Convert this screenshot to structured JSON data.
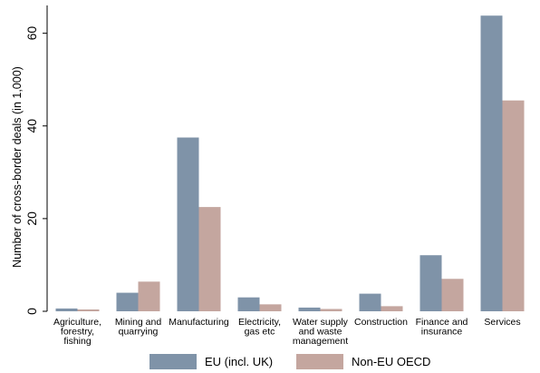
{
  "chart_data": {
    "type": "bar",
    "title": "",
    "xlabel": "",
    "ylabel": "Number of cross-border deals (in 1,000)",
    "ylim": [
      0,
      66
    ],
    "yticks": [
      0,
      20,
      40,
      60
    ],
    "grid": false,
    "legend_position": "bottom",
    "categories": [
      [
        "Agriculture,",
        "forestry,",
        "fishing"
      ],
      [
        "Mining and",
        "quarrying"
      ],
      [
        "Manufacturing"
      ],
      [
        "Electricity,",
        "gas etc"
      ],
      [
        "Water supply",
        "and waste",
        "management"
      ],
      [
        "Construction"
      ],
      [
        "Finance and",
        "insurance"
      ],
      [
        "Services"
      ]
    ],
    "series": [
      {
        "name": "EU (incl. UK)",
        "color": "#7f93a8",
        "values": [
          0.6,
          4.0,
          37.5,
          3.0,
          0.8,
          3.8,
          12.1,
          63.8
        ]
      },
      {
        "name": "Non-EU OECD",
        "color": "#c4a69f",
        "values": [
          0.4,
          6.4,
          22.5,
          1.5,
          0.5,
          1.1,
          7.0,
          45.5
        ]
      }
    ]
  }
}
